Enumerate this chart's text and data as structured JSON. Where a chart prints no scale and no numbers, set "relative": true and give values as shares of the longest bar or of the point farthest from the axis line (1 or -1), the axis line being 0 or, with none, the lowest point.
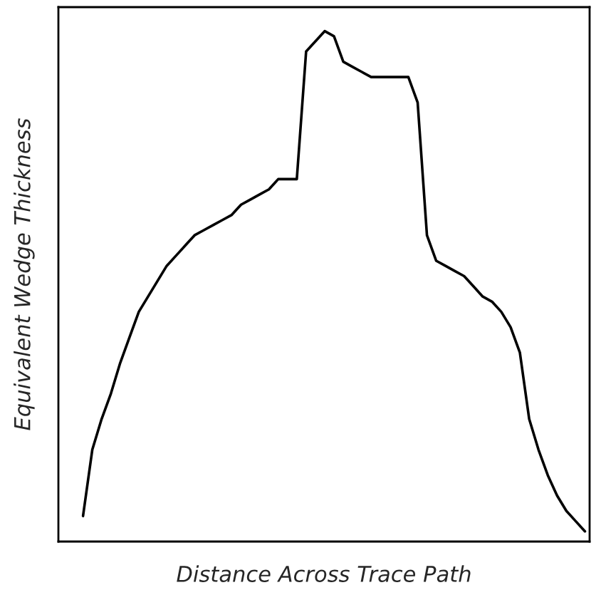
{
  "chart_data": {
    "type": "line",
    "relative": true,
    "xlabel": "Distance Across Trace Path",
    "ylabel": "Equivalent Wedge Thickness",
    "color": "#000000",
    "categories": [
      null,
      null,
      null,
      null,
      null,
      null,
      null,
      null,
      null,
      null,
      null,
      null,
      null,
      null,
      null,
      null,
      null,
      null,
      null,
      null,
      null,
      null,
      null,
      null,
      null,
      null,
      null,
      null,
      null,
      null,
      null,
      null,
      null,
      null,
      null,
      null,
      null,
      null,
      null,
      null,
      null,
      null,
      null,
      null,
      null,
      null,
      null,
      null,
      null,
      null,
      null,
      null,
      null,
      null,
      null
    ],
    "values": [
      0.05,
      0.18,
      0.24,
      0.29,
      0.35,
      0.4,
      0.45,
      0.48,
      0.51,
      0.54,
      0.56,
      0.58,
      0.6,
      0.61,
      0.62,
      0.63,
      0.64,
      0.66,
      0.67,
      0.68,
      0.69,
      0.71,
      0.71,
      0.71,
      0.96,
      0.98,
      1.0,
      0.99,
      0.94,
      0.93,
      0.92,
      0.91,
      0.91,
      0.91,
      0.91,
      0.91,
      0.86,
      0.6,
      0.55,
      0.54,
      0.53,
      0.52,
      0.5,
      0.48,
      0.47,
      0.45,
      0.42,
      0.37,
      0.24,
      0.18,
      0.13,
      0.09,
      0.06,
      0.04,
      0.02
    ]
  }
}
